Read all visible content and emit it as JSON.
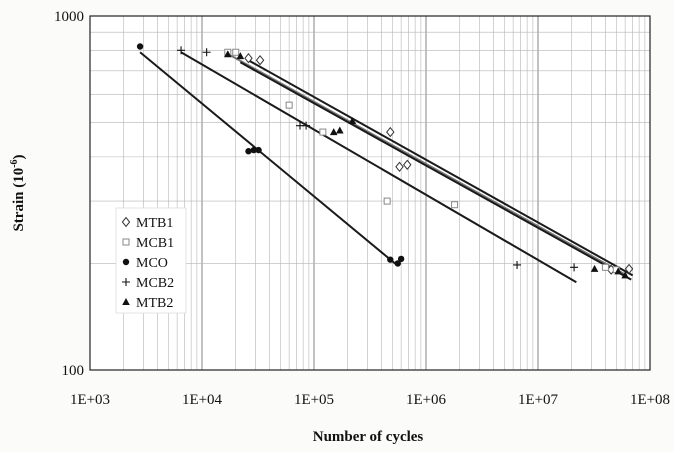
{
  "chart_data": {
    "type": "scatter",
    "xscale": "log",
    "yscale": "log",
    "xlim": [
      1000,
      100000000
    ],
    "ylim": [
      100,
      1000
    ],
    "xlabel": "Number of cycles",
    "ylabel": "Strain (10",
    "ylabel_sup": "-6",
    "ylabel_close": ")",
    "x_ticks": [
      {
        "value": 1000,
        "label": "1E+03"
      },
      {
        "value": 10000,
        "label": "1E+04"
      },
      {
        "value": 100000,
        "label": "1E+05"
      },
      {
        "value": 1000000,
        "label": "1E+06"
      },
      {
        "value": 10000000,
        "label": "1E+07"
      },
      {
        "value": 100000000,
        "label": "1E+08"
      }
    ],
    "y_ticks": [
      {
        "value": 100,
        "label": "100"
      },
      {
        "value": 1000,
        "label": "1000"
      }
    ],
    "grid": true,
    "legend_position": "left-bottom",
    "series": [
      {
        "name": "MTB1",
        "marker": "diamond-open",
        "color": "#333333",
        "points": [
          [
            26000,
            760
          ],
          [
            33000,
            750
          ],
          [
            480000,
            470
          ],
          [
            580000,
            375
          ],
          [
            680000,
            380
          ],
          [
            45000000,
            192
          ],
          [
            65000000,
            193
          ]
        ],
        "fit": [
          [
            25000,
            755
          ],
          [
            70000000,
            185
          ]
        ]
      },
      {
        "name": "MCB1",
        "marker": "square-open",
        "color": "#888888",
        "points": [
          [
            17000,
            790
          ],
          [
            20000,
            790
          ],
          [
            60000,
            560
          ],
          [
            120000,
            470
          ],
          [
            450000,
            300
          ],
          [
            1800000,
            293
          ],
          [
            40000000,
            195
          ],
          [
            50000000,
            192
          ]
        ],
        "fit": [
          [
            16000,
            790
          ],
          [
            62000000,
            185
          ]
        ]
      },
      {
        "name": "MCO",
        "marker": "circle-filled",
        "color": "#111111",
        "points": [
          [
            2800,
            820
          ],
          [
            26000,
            415
          ],
          [
            29000,
            418
          ],
          [
            32000,
            418
          ],
          [
            480000,
            205
          ],
          [
            560000,
            200
          ],
          [
            600000,
            206
          ]
        ],
        "fit": [
          [
            2800,
            790
          ],
          [
            560000,
            197
          ]
        ]
      },
      {
        "name": "MCB2",
        "marker": "plus",
        "color": "#111111",
        "points": [
          [
            6500,
            800
          ],
          [
            11000,
            790
          ],
          [
            75000,
            490
          ],
          [
            85000,
            490
          ],
          [
            6500000,
            198
          ],
          [
            21000000,
            195
          ]
        ],
        "fit": [
          [
            6500,
            790
          ],
          [
            22000000,
            177
          ]
        ]
      },
      {
        "name": "MTB2",
        "marker": "triangle-filled",
        "color": "#111111",
        "points": [
          [
            17000,
            780
          ],
          [
            22000,
            770
          ],
          [
            150000,
            470
          ],
          [
            170000,
            475
          ],
          [
            220000,
            505
          ],
          [
            32000000,
            193
          ],
          [
            52000000,
            190
          ],
          [
            60000000,
            185
          ]
        ],
        "fit": [
          [
            22000,
            740
          ],
          [
            68000000,
            180
          ]
        ]
      }
    ]
  }
}
